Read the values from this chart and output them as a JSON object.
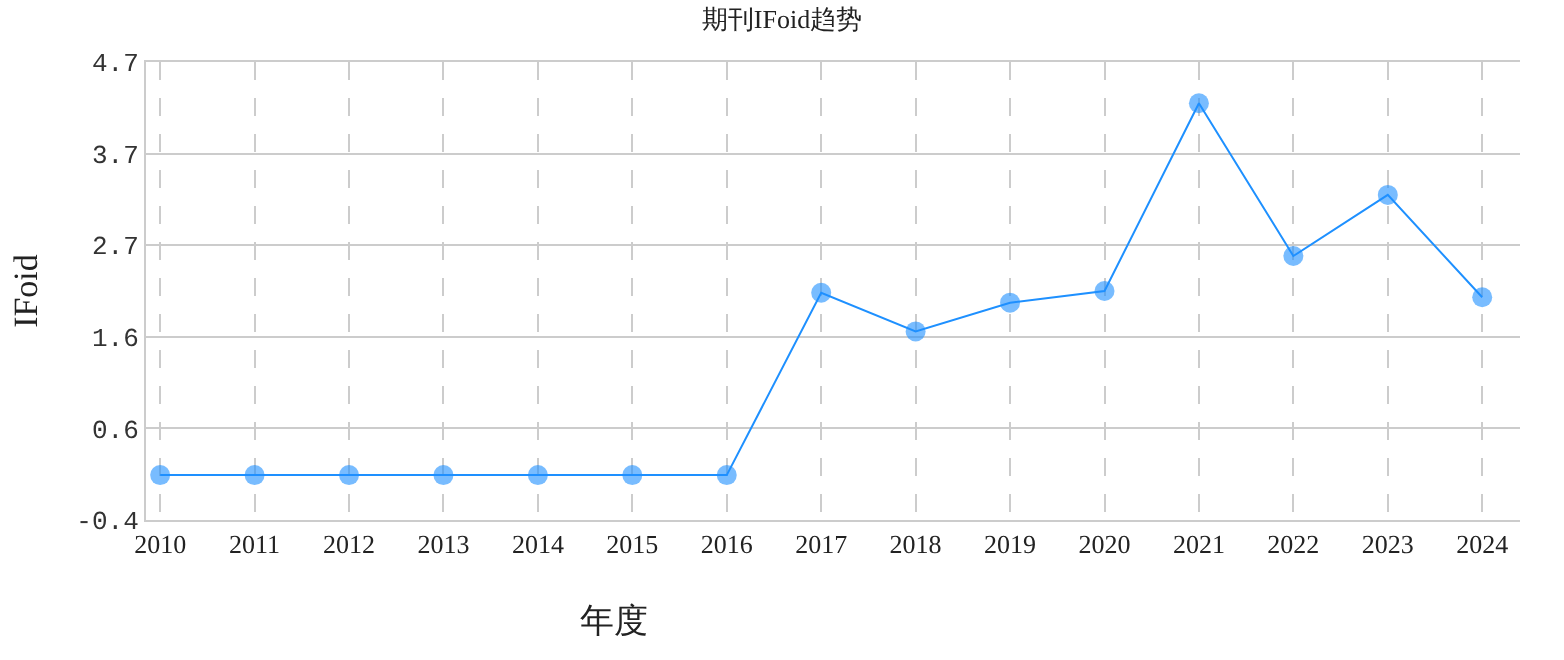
{
  "chart_data": {
    "type": "line",
    "title": "期刊IFoid趋势",
    "xlabel": "年度",
    "ylabel": "IFoid",
    "categories": [
      "2010",
      "2011",
      "2012",
      "2013",
      "2014",
      "2015",
      "2016",
      "2017",
      "2018",
      "2019",
      "2020",
      "2021",
      "2022",
      "2023",
      "2024"
    ],
    "series": [
      {
        "color": "#1e90ff",
        "values": [
          0.1,
          0.1,
          0.1,
          0.1,
          0.1,
          0.1,
          0.1,
          2.13,
          1.7,
          2.02,
          2.15,
          4.24,
          2.54,
          3.22,
          2.08
        ]
      }
    ],
    "ylim": [
      -0.4,
      4.7
    ],
    "yticks": [
      -0.4,
      {
        "value": 0.62,
        "label": "0.6"
      },
      {
        "value": 1.64,
        "label": "1.6"
      },
      {
        "value": 2.66,
        "label": "2.7"
      },
      {
        "value": 3.68,
        "label": "3.7"
      },
      4.7
    ],
    "grid": true,
    "marker": "circle",
    "line_style": "solid"
  }
}
